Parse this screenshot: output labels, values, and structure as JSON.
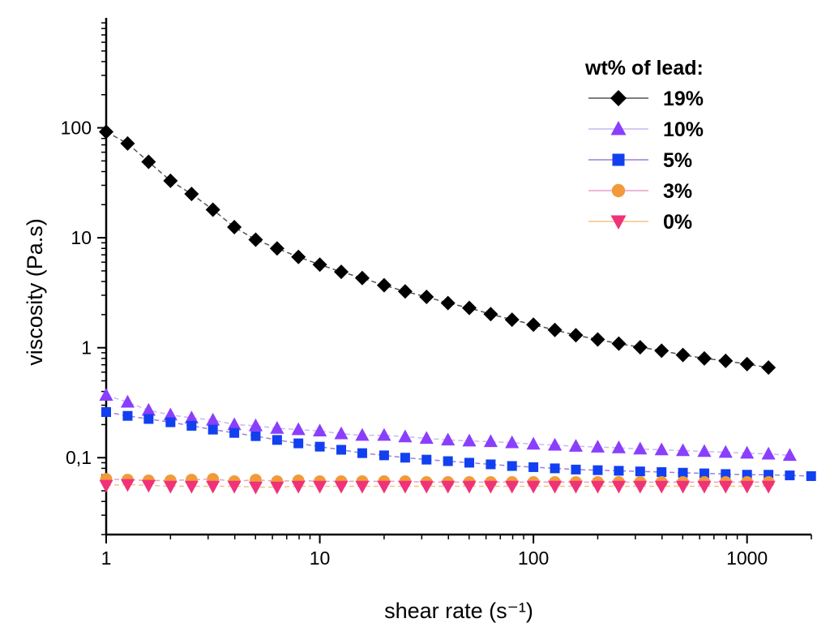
{
  "chart_data": {
    "type": "scatter",
    "title": "",
    "xlabel": "shear rate (s⁻¹)",
    "ylabel": "viscosity (Pa.s)",
    "x_scale": "log",
    "y_scale": "log",
    "xlim": [
      1,
      2000
    ],
    "ylim": [
      0.02,
      1000
    ],
    "grid": false,
    "legend": {
      "title": "wt% of lead:",
      "placement": "top-right"
    },
    "x_tick_labels": [
      {
        "value": 1,
        "label": "1"
      },
      {
        "value": 10,
        "label": "10"
      },
      {
        "value": 100,
        "label": "100"
      },
      {
        "value": 1000,
        "label": "1000"
      }
    ],
    "y_tick_labels": [
      {
        "value": 0.1,
        "label": "0,1"
      },
      {
        "value": 1,
        "label": "1"
      },
      {
        "value": 10,
        "label": "10"
      },
      {
        "value": 100,
        "label": "100"
      }
    ],
    "series": [
      {
        "name": "19%",
        "marker": "diamond",
        "color": "#000000",
        "line_color": "#555555",
        "x": [
          1,
          1.26,
          1.58,
          2,
          2.51,
          3.16,
          3.98,
          5.01,
          6.31,
          7.94,
          10,
          12.6,
          15.8,
          20,
          25.1,
          31.6,
          39.8,
          50.1,
          63.1,
          79.4,
          100,
          126,
          158,
          200,
          251,
          316,
          398,
          501,
          631,
          794,
          1000,
          1260
        ],
        "y": [
          92,
          72,
          49,
          33,
          25,
          18,
          12.5,
          9.6,
          8.0,
          6.7,
          5.7,
          4.9,
          4.3,
          3.7,
          3.25,
          2.9,
          2.55,
          2.3,
          2.02,
          1.8,
          1.62,
          1.45,
          1.3,
          1.19,
          1.09,
          1.01,
          0.94,
          0.86,
          0.8,
          0.76,
          0.71,
          0.66
        ]
      },
      {
        "name": "10%",
        "marker": "triangle-up",
        "color": "#8a3ffc",
        "line_color": "#c9b8f0",
        "x": [
          1,
          1.26,
          1.58,
          2,
          2.51,
          3.16,
          3.98,
          5.01,
          6.31,
          7.94,
          10,
          12.6,
          15.8,
          20,
          25.1,
          31.6,
          39.8,
          50.1,
          63.1,
          79.4,
          100,
          126,
          158,
          200,
          251,
          316,
          398,
          501,
          631,
          794,
          1000,
          1260,
          1585
        ],
        "y": [
          0.37,
          0.32,
          0.27,
          0.245,
          0.23,
          0.22,
          0.2,
          0.195,
          0.185,
          0.18,
          0.175,
          0.165,
          0.16,
          0.16,
          0.155,
          0.15,
          0.145,
          0.142,
          0.14,
          0.137,
          0.133,
          0.13,
          0.127,
          0.125,
          0.123,
          0.12,
          0.118,
          0.116,
          0.114,
          0.112,
          0.11,
          0.108,
          0.105
        ]
      },
      {
        "name": "5%",
        "marker": "square",
        "color": "#1240f0",
        "line_color": "#9a7fd8",
        "x": [
          1,
          1.26,
          1.58,
          2,
          2.51,
          3.16,
          3.98,
          5.01,
          6.31,
          7.94,
          10,
          12.6,
          15.8,
          20,
          25.1,
          31.6,
          39.8,
          50.1,
          63.1,
          79.4,
          100,
          126,
          158,
          200,
          251,
          316,
          398,
          501,
          631,
          794,
          1000,
          1260,
          1585,
          1995
        ],
        "y": [
          0.26,
          0.24,
          0.225,
          0.21,
          0.195,
          0.18,
          0.168,
          0.157,
          0.145,
          0.135,
          0.126,
          0.118,
          0.11,
          0.105,
          0.1,
          0.096,
          0.093,
          0.09,
          0.087,
          0.084,
          0.082,
          0.08,
          0.078,
          0.077,
          0.076,
          0.075,
          0.074,
          0.073,
          0.072,
          0.071,
          0.07,
          0.07,
          0.069,
          0.068
        ]
      },
      {
        "name": "3%",
        "marker": "circle",
        "color": "#f29a3a",
        "line_color": "#e9a0c8",
        "x": [
          1,
          1.26,
          1.58,
          2,
          2.51,
          3.16,
          3.98,
          5.01,
          6.31,
          7.94,
          10,
          12.6,
          15.8,
          20,
          25.1,
          31.6,
          39.8,
          50.1,
          63.1,
          79.4,
          100,
          126,
          158,
          200,
          251,
          316,
          398,
          501,
          631,
          794,
          1000,
          1260
        ],
        "y": [
          0.064,
          0.063,
          0.062,
          0.062,
          0.063,
          0.064,
          0.061,
          0.063,
          0.061,
          0.062,
          0.061,
          0.061,
          0.061,
          0.061,
          0.061,
          0.06,
          0.06,
          0.06,
          0.06,
          0.06,
          0.06,
          0.06,
          0.06,
          0.06,
          0.06,
          0.06,
          0.06,
          0.06,
          0.06,
          0.06,
          0.06,
          0.06
        ]
      },
      {
        "name": "0%",
        "marker": "triangle-down",
        "color": "#f0327a",
        "line_color": "#f5c08a",
        "x": [
          1,
          1.26,
          1.58,
          2,
          2.51,
          3.16,
          3.98,
          5.01,
          6.31,
          7.94,
          10,
          12.6,
          15.8,
          20,
          25.1,
          31.6,
          39.8,
          50.1,
          63.1,
          79.4,
          100,
          126,
          158,
          200,
          251,
          316,
          398,
          501,
          631,
          794,
          1000,
          1260
        ],
        "y": [
          0.056,
          0.057,
          0.056,
          0.055,
          0.055,
          0.055,
          0.055,
          0.054,
          0.054,
          0.055,
          0.055,
          0.055,
          0.055,
          0.055,
          0.055,
          0.055,
          0.055,
          0.055,
          0.055,
          0.055,
          0.055,
          0.055,
          0.055,
          0.055,
          0.055,
          0.055,
          0.055,
          0.055,
          0.055,
          0.055,
          0.055,
          0.055
        ]
      }
    ]
  }
}
